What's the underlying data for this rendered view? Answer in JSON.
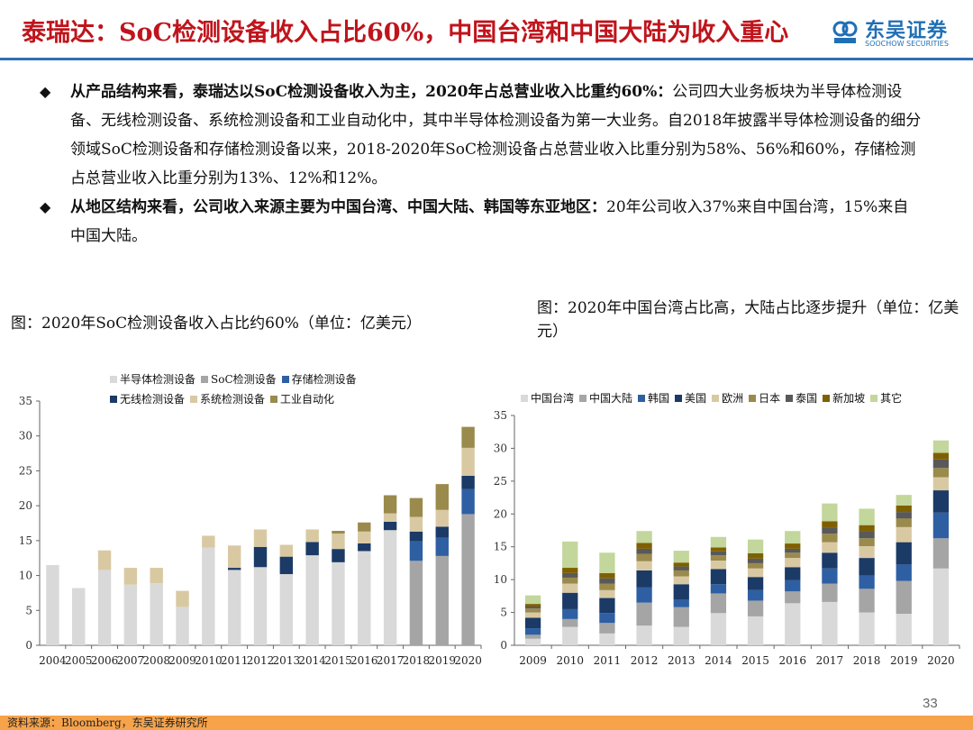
{
  "header": {
    "title": "泰瑞达：SoC检测设备收入占比60%，中国台湾和中国大陆为收入重心",
    "logo_cn": "东吴证券",
    "logo_en": "SOOCHOW SECURITIES"
  },
  "bullets": [
    {
      "bold": "从产品结构来看，泰瑞达以SoC检测设备收入为主，2020年占总营业收入比重约60%：",
      "text": "公司四大业务板块为半导体检测设备、无线检测设备、系统检测设备和工业自动化中，其中半导体检测设备为第一大业务。自2018年披露半导体检测设备的细分领域SoC检测设备和存储检测设备以来，2018-2020年SoC检测设备占总营业收入比重分别为58%、56%和60%，存储检测占总营业收入比重分别为13%、12%和12%。"
    },
    {
      "bold": "从地区结构来看，公司收入来源主要为中国台湾、中国大陆、韩国等东亚地区：",
      "text": "20年公司收入37%来自中国台湾，15%来自中国大陆。"
    }
  ],
  "chart_left_title": "图：2020年SoC检测设备收入占比约60%（单位：亿美元）",
  "chart_right_title": "图：2020年中国台湾占比高，大陆占比逐步提升（单位：亿美元）",
  "chart_data": [
    {
      "type": "bar",
      "stacked": true,
      "title": "",
      "ylim": [
        0,
        35
      ],
      "yticks": [
        0,
        5,
        10,
        15,
        20,
        25,
        30,
        35
      ],
      "categories": [
        "2004",
        "2005",
        "2006",
        "2007",
        "2008",
        "2009",
        "2010",
        "2011",
        "2012",
        "2013",
        "2014",
        "2015",
        "2016",
        "2017",
        "2018",
        "2019",
        "2020"
      ],
      "legend_position": "top",
      "series": [
        {
          "name": "半导体检测设备",
          "color": "#d9d9d9",
          "values": [
            11.5,
            8.2,
            10.8,
            8.7,
            8.9,
            5.5,
            14.0,
            10.8,
            11.2,
            10.2,
            12.9,
            11.9,
            13.5,
            16.5,
            0,
            0,
            0
          ]
        },
        {
          "name": "SoC检测设备",
          "color": "#a5a5a5",
          "values": [
            0,
            0,
            0,
            0,
            0,
            0,
            0,
            0,
            0,
            0,
            0,
            0,
            0,
            0,
            12.1,
            12.8,
            18.8
          ]
        },
        {
          "name": "存储检测设备",
          "color": "#2e5fa3",
          "values": [
            0,
            0,
            0,
            0,
            0,
            0,
            0,
            0,
            0,
            0,
            0,
            0,
            0,
            0,
            2.8,
            2.6,
            3.6
          ]
        },
        {
          "name": "无线检测设备",
          "color": "#1b3a66",
          "values": [
            0,
            0,
            0,
            0,
            0,
            0,
            0,
            0.3,
            2.9,
            2.5,
            1.9,
            1.9,
            1.1,
            1.2,
            1.4,
            1.6,
            1.9
          ]
        },
        {
          "name": "系统检测设备",
          "color": "#d9c9a3",
          "values": [
            0,
            0,
            2.8,
            2.4,
            2.2,
            2.3,
            1.7,
            3.2,
            2.5,
            1.7,
            1.8,
            2.2,
            1.7,
            1.2,
            2.1,
            2.4,
            4.0
          ]
        },
        {
          "name": "工业自动化",
          "color": "#9a8a4c",
          "values": [
            0,
            0,
            0,
            0,
            0,
            0,
            0,
            0,
            0,
            0,
            0,
            0.4,
            1.3,
            2.6,
            2.7,
            3.7,
            3.0
          ]
        }
      ]
    },
    {
      "type": "bar",
      "stacked": true,
      "title": "",
      "ylim": [
        0,
        35
      ],
      "yticks": [
        0,
        5,
        10,
        15,
        20,
        25,
        30,
        35
      ],
      "categories": [
        "2009",
        "2010",
        "2011",
        "2012",
        "2013",
        "2014",
        "2015",
        "2016",
        "2017",
        "2018",
        "2019",
        "2020"
      ],
      "legend_position": "top",
      "series": [
        {
          "name": "中国台湾",
          "color": "#d9d9d9",
          "values": [
            1.0,
            2.8,
            1.8,
            3.0,
            2.8,
            4.9,
            4.4,
            6.4,
            6.6,
            5.0,
            4.8,
            11.7
          ]
        },
        {
          "name": "中国大陆",
          "color": "#a5a5a5",
          "values": [
            0.6,
            1.2,
            1.6,
            3.5,
            3.0,
            3.0,
            2.4,
            1.8,
            2.8,
            3.6,
            5.0,
            4.6
          ]
        },
        {
          "name": "韩国",
          "color": "#2e5fa3",
          "values": [
            1.0,
            1.5,
            1.5,
            2.3,
            1.2,
            1.4,
            1.6,
            1.7,
            2.3,
            2.0,
            2.5,
            3.9
          ]
        },
        {
          "name": "美国",
          "color": "#1b3a66",
          "values": [
            1.6,
            2.5,
            2.3,
            2.6,
            2.3,
            2.3,
            2.0,
            2.0,
            2.4,
            2.7,
            3.4,
            3.4
          ]
        },
        {
          "name": "欧洲",
          "color": "#d9c9a3",
          "values": [
            0.8,
            1.4,
            1.2,
            1.4,
            1.2,
            1.3,
            1.3,
            1.4,
            1.6,
            1.8,
            2.3,
            2.0
          ]
        },
        {
          "name": "日本",
          "color": "#9a8a4c",
          "values": [
            0.6,
            0.9,
            1.0,
            1.1,
            0.9,
            0.8,
            0.8,
            0.8,
            1.3,
            1.2,
            1.3,
            1.4
          ]
        },
        {
          "name": "泰国",
          "color": "#595959",
          "values": [
            0.3,
            0.7,
            0.8,
            0.8,
            0.6,
            0.6,
            0.7,
            0.6,
            0.9,
            1.0,
            1.0,
            1.3
          ]
        },
        {
          "name": "新加坡",
          "color": "#7f6000",
          "values": [
            0.4,
            0.8,
            0.8,
            0.9,
            0.6,
            0.6,
            0.8,
            0.8,
            1.0,
            1.0,
            1.0,
            1.0
          ]
        },
        {
          "name": "其它",
          "color": "#c3d69b",
          "values": [
            1.3,
            4.0,
            3.1,
            1.8,
            1.8,
            1.6,
            2.1,
            1.9,
            2.7,
            2.5,
            1.6,
            1.9
          ]
        }
      ]
    }
  ],
  "page_number": "33",
  "footer": "资料来源：Bloomberg，东吴证券研究所"
}
